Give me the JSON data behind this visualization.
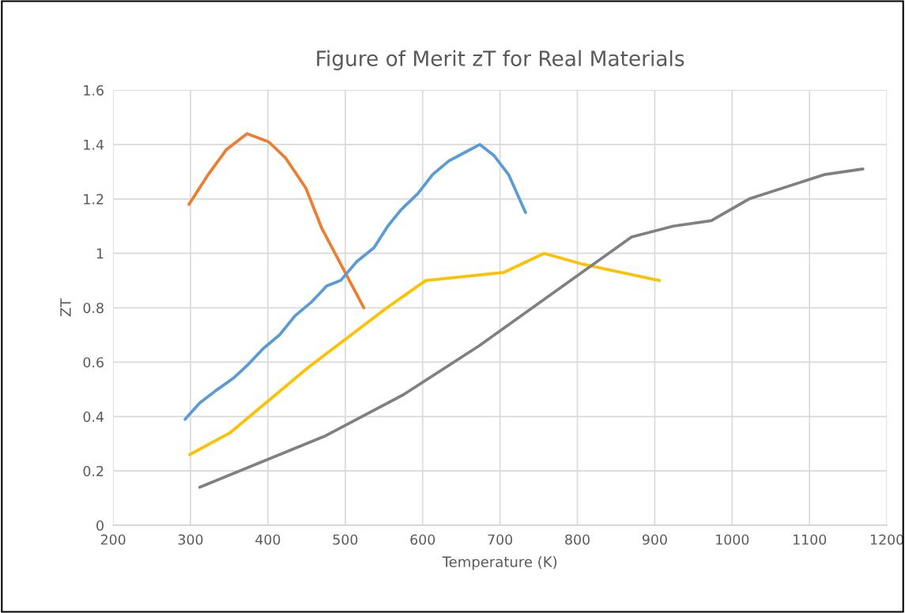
{
  "chart_data": {
    "type": "line",
    "title": "Figure of Merit zT for Real Materials",
    "xlabel": "Temperature (K)",
    "ylabel": "ZT",
    "xlim": [
      200,
      1200
    ],
    "xticks": [
      200,
      300,
      400,
      500,
      600,
      700,
      800,
      900,
      1000,
      1100,
      1200
    ],
    "ylim": [
      0,
      1.6
    ],
    "yticks": [
      0,
      0.2,
      0.4,
      0.6,
      0.8,
      1,
      1.2,
      1.4,
      1.6
    ],
    "grid": true,
    "marker": "none",
    "line_style": "solid",
    "series": [
      {
        "color": "#ed7d31",
        "x": [
          298,
          323,
          346,
          373,
          401,
          423,
          449,
          470,
          524
        ],
        "values": [
          1.18,
          1.29,
          1.38,
          1.44,
          1.41,
          1.35,
          1.24,
          1.09,
          0.8
        ]
      },
      {
        "color": "#5b9bd5",
        "x": [
          293,
          312,
          335,
          355,
          374,
          394,
          415,
          435,
          456,
          476,
          494,
          515,
          537,
          555,
          572,
          594,
          613,
          634,
          654,
          674,
          692,
          711,
          733
        ],
        "values": [
          0.39,
          0.45,
          0.5,
          0.54,
          0.59,
          0.65,
          0.7,
          0.77,
          0.82,
          0.88,
          0.9,
          0.97,
          1.02,
          1.1,
          1.16,
          1.22,
          1.29,
          1.34,
          1.37,
          1.4,
          1.36,
          1.29,
          1.15
        ]
      },
      {
        "color": "#ffc000",
        "x": [
          299,
          351,
          452,
          554,
          604,
          705,
          757,
          807,
          856,
          906
        ],
        "values": [
          0.26,
          0.34,
          0.58,
          0.8,
          0.9,
          0.93,
          1.0,
          0.96,
          0.93,
          0.9
        ]
      },
      {
        "color": "#808080",
        "x": [
          312,
          475,
          575,
          673,
          870,
          924,
          973,
          1022,
          1120,
          1169
        ],
        "values": [
          0.14,
          0.33,
          0.48,
          0.66,
          1.06,
          1.1,
          1.12,
          1.2,
          1.29,
          1.31
        ]
      }
    ]
  }
}
